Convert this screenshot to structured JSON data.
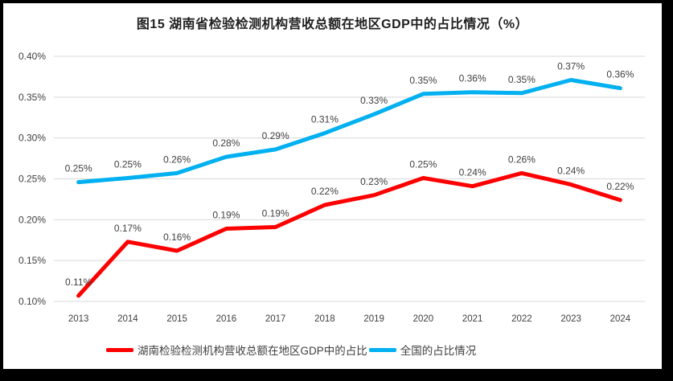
{
  "frame": {
    "background_color": "#000000",
    "card_color": "#ffffff"
  },
  "chart_data": {
    "type": "line",
    "title": "图15 湖南省检验检测机构营收总额在地区GDP中的占比情况（%）",
    "categories": [
      "2013",
      "2014",
      "2015",
      "2016",
      "2017",
      "2018",
      "2019",
      "2020",
      "2021",
      "2022",
      "2023",
      "2024"
    ],
    "xlabel": "",
    "ylabel": "",
    "ylim": [
      0.1,
      0.4
    ],
    "grid": true,
    "gridline_color": "#d9d9d9",
    "legend_position": "bottom",
    "y_ticks": [
      {
        "label": "0.40%",
        "value": 0.4
      },
      {
        "label": "0.35%",
        "value": 0.35
      },
      {
        "label": "0.30%",
        "value": 0.3
      },
      {
        "label": "0.25%",
        "value": 0.25
      },
      {
        "label": "0.20%",
        "value": 0.2
      },
      {
        "label": "0.15%",
        "value": 0.15
      },
      {
        "label": "0.10%",
        "value": 0.1
      }
    ],
    "series": [
      {
        "name": "湖南检验检测机构营收总额在地区GDP中的占比",
        "color": "#fe0000",
        "values": [
          0.11,
          0.17,
          0.16,
          0.19,
          0.19,
          0.22,
          0.23,
          0.25,
          0.24,
          0.26,
          0.24,
          0.22
        ],
        "labels": [
          "0.11%",
          "0.17%",
          "0.16%",
          "0.19%",
          "0.19%",
          "0.22%",
          "0.23%",
          "0.25%",
          "0.24%",
          "0.26%",
          "0.24%",
          "0.22%"
        ],
        "values_est": [
          0.107,
          0.173,
          0.162,
          0.189,
          0.191,
          0.218,
          0.23,
          0.251,
          0.241,
          0.257,
          0.243,
          0.224
        ]
      },
      {
        "name": "全国的占比情况",
        "color": "#00b0f0",
        "values": [
          0.25,
          0.25,
          0.26,
          0.28,
          0.29,
          0.31,
          0.33,
          0.35,
          0.36,
          0.35,
          0.37,
          0.36
        ],
        "labels": [
          "0.25%",
          "0.25%",
          "0.26%",
          "0.28%",
          "0.29%",
          "0.31%",
          "0.33%",
          "0.35%",
          "0.36%",
          "0.35%",
          "0.37%",
          "0.36%"
        ],
        "values_est": [
          0.246,
          0.251,
          0.257,
          0.277,
          0.286,
          0.306,
          0.329,
          0.354,
          0.356,
          0.355,
          0.371,
          0.361
        ]
      }
    ]
  }
}
